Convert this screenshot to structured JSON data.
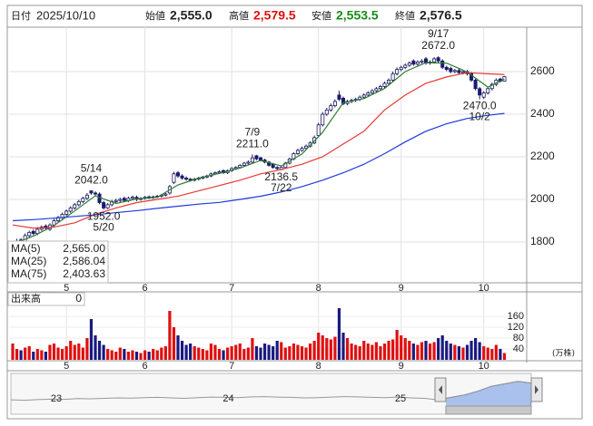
{
  "header": {
    "date_label": "日付",
    "date": "2025/10/10",
    "open_label": "始値",
    "open": "2,555.0",
    "high_label": "高値",
    "high": "2,579.5",
    "low_label": "安値",
    "low": "2,553.5",
    "close_label": "終値",
    "close": "2,576.5"
  },
  "chart_data": {
    "type": "candlestick",
    "open": [
      1780,
      1790,
      1810,
      1800,
      1830,
      1850,
      1840,
      1860,
      1875,
      1860,
      1880,
      1900,
      1915,
      1930,
      1945,
      1960,
      1975,
      1990,
      2005,
      2040,
      2030,
      2025,
      1985,
      1960,
      1975,
      1990,
      1995,
      2005,
      1995,
      2005,
      2010,
      2000,
      2005,
      2012,
      2008,
      2012,
      2015,
      2020,
      2030,
      2080,
      2125,
      2110,
      2100,
      2095,
      2090,
      2095,
      2100,
      2105,
      2110,
      2120,
      2125,
      2135,
      2125,
      2135,
      2145,
      2150,
      2160,
      2170,
      2175,
      2205,
      2195,
      2185,
      2175,
      2165,
      2150,
      2140,
      2150,
      2170,
      2190,
      2215,
      2230,
      2240,
      2250,
      2265,
      2300,
      2350,
      2400,
      2420,
      2440,
      2490,
      2475,
      2450,
      2460,
      2465,
      2470,
      2480,
      2490,
      2500,
      2510,
      2520,
      2530,
      2545,
      2560,
      2590,
      2610,
      2620,
      2630,
      2650,
      2635,
      2645,
      2660,
      2640,
      2645,
      2665,
      2650,
      2620,
      2615,
      2600,
      2605,
      2595,
      2600,
      2590,
      2560,
      2520,
      2480,
      2500,
      2520,
      2540,
      2565,
      2555
    ],
    "high": [
      1798,
      1815,
      1818,
      1840,
      1853,
      1858,
      1870,
      1878,
      1883,
      1888,
      1908,
      1923,
      1938,
      1953,
      1968,
      1983,
      1998,
      2013,
      2030,
      2042,
      2038,
      2033,
      1993,
      1983,
      1998,
      2003,
      2008,
      2013,
      2013,
      2018,
      2018,
      2011,
      2016,
      2018,
      2018,
      2021,
      2026,
      2031,
      2068,
      2130,
      2133,
      2118,
      2108,
      2101,
      2101,
      2106,
      2111,
      2116,
      2126,
      2131,
      2136,
      2141,
      2141,
      2151,
      2156,
      2166,
      2176,
      2183,
      2211,
      2209,
      2201,
      2191,
      2181,
      2171,
      2156,
      2156,
      2176,
      2196,
      2221,
      2238,
      2248,
      2258,
      2273,
      2300,
      2360,
      2410,
      2430,
      2450,
      2470,
      2510,
      2483,
      2468,
      2473,
      2478,
      2488,
      2498,
      2508,
      2518,
      2528,
      2538,
      2553,
      2568,
      2600,
      2620,
      2628,
      2638,
      2648,
      2658,
      2653,
      2658,
      2668,
      2653,
      2668,
      2672,
      2658,
      2628,
      2623,
      2613,
      2613,
      2608,
      2608,
      2598,
      2568,
      2528,
      2508,
      2528,
      2548,
      2568,
      2571,
      2579.5
    ],
    "low": [
      1772,
      1782,
      1792,
      1792,
      1822,
      1832,
      1832,
      1852,
      1857,
      1852,
      1872,
      1892,
      1907,
      1922,
      1937,
      1952,
      1967,
      1982,
      1997,
      2022,
      2017,
      1977,
      1952,
      1955,
      1967,
      1982,
      1987,
      1987,
      1987,
      1997,
      1992,
      1994,
      1999,
      2002,
      2002,
      2006,
      2009,
      2014,
      2022,
      2072,
      2102,
      2092,
      2087,
      2084,
      2084,
      2089,
      2094,
      2099,
      2104,
      2114,
      2119,
      2119,
      2119,
      2129,
      2139,
      2144,
      2154,
      2164,
      2169,
      2184,
      2179,
      2169,
      2154,
      2144,
      2139,
      2136.5,
      2144,
      2164,
      2184,
      2209,
      2224,
      2234,
      2244,
      2259,
      2292,
      2342,
      2392,
      2412,
      2432,
      2462,
      2442,
      2442,
      2452,
      2457,
      2462,
      2472,
      2482,
      2492,
      2502,
      2512,
      2522,
      2537,
      2552,
      2582,
      2602,
      2612,
      2622,
      2627,
      2627,
      2637,
      2632,
      2632,
      2637,
      2642,
      2612,
      2602,
      2592,
      2592,
      2587,
      2587,
      2582,
      2552,
      2512,
      2470,
      2472,
      2492,
      2512,
      2532,
      2549,
      2553.5
    ],
    "close": [
      1790,
      1805,
      1800,
      1830,
      1845,
      1840,
      1860,
      1870,
      1865,
      1880,
      1900,
      1915,
      1930,
      1945,
      1960,
      1975,
      1990,
      2005,
      2020,
      2030,
      2025,
      1985,
      1960,
      1975,
      1990,
      1995,
      2000,
      1995,
      2005,
      2010,
      2000,
      2005,
      2010,
      2008,
      2012,
      2015,
      2020,
      2025,
      2060,
      2120,
      2110,
      2100,
      2095,
      2090,
      2095,
      2100,
      2105,
      2110,
      2120,
      2125,
      2130,
      2125,
      2135,
      2145,
      2150,
      2160,
      2170,
      2175,
      2195,
      2190,
      2185,
      2175,
      2160,
      2150,
      2145,
      2150,
      2170,
      2190,
      2215,
      2230,
      2240,
      2250,
      2265,
      2290,
      2350,
      2400,
      2420,
      2440,
      2460,
      2470,
      2450,
      2460,
      2465,
      2470,
      2480,
      2490,
      2500,
      2510,
      2520,
      2530,
      2545,
      2560,
      2590,
      2610,
      2620,
      2630,
      2640,
      2635,
      2645,
      2650,
      2640,
      2645,
      2660,
      2650,
      2620,
      2610,
      2600,
      2605,
      2595,
      2600,
      2590,
      2560,
      2520,
      2490,
      2500,
      2520,
      2540,
      2560,
      2555,
      2576.5
    ],
    "up_color": "#ffffff",
    "down_color": "#1a1a80",
    "wick_color": "#1a1a60",
    "xticks": [
      {
        "value": 13,
        "label": "5"
      },
      {
        "value": 32,
        "label": "6"
      },
      {
        "value": 53,
        "label": "7"
      },
      {
        "value": 74,
        "label": "8"
      },
      {
        "value": 94,
        "label": "9"
      },
      {
        "value": 114,
        "label": "10"
      }
    ],
    "ylim": [
      1608.5,
      2808.5
    ],
    "yticks": [
      1800,
      2000,
      2200,
      2400,
      2600
    ],
    "grid": true,
    "series": [
      {
        "name": "MA(5)",
        "last_label": "2,565.00",
        "color": "#2e7d32",
        "x": [
          0,
          5,
          10,
          15,
          20,
          25,
          30,
          35,
          40,
          45,
          50,
          55,
          60,
          65,
          70,
          75,
          80,
          85,
          90,
          95,
          100,
          105,
          110,
          115,
          119
        ],
        "values": [
          1790,
          1828,
          1877,
          1946,
          2017,
          1981,
          2002,
          2010,
          2068,
          2100,
          2122,
          2147,
          2183,
          2157,
          2213,
          2315,
          2454,
          2473,
          2521,
          2600,
          2642,
          2640,
          2598,
          2527,
          2565.0
        ]
      },
      {
        "name": "MA(25)",
        "last_label": "2,586.04",
        "color": "#e53935",
        "x": [
          0,
          5,
          10,
          15,
          20,
          25,
          30,
          35,
          40,
          45,
          50,
          55,
          60,
          65,
          70,
          75,
          80,
          85,
          90,
          95,
          100,
          105,
          110,
          115,
          119
        ],
        "values": [
          1880,
          1865,
          1870,
          1890,
          1930,
          1960,
          1985,
          2000,
          2015,
          2040,
          2065,
          2090,
          2120,
          2140,
          2165,
          2200,
          2260,
          2320,
          2420,
          2490,
          2545,
          2575,
          2595,
          2590,
          2586.04
        ]
      },
      {
        "name": "MA(75)",
        "last_label": "2,403.63",
        "color": "#1e3adb",
        "x": [
          0,
          5,
          10,
          15,
          20,
          25,
          30,
          35,
          40,
          45,
          50,
          55,
          60,
          65,
          70,
          75,
          80,
          85,
          90,
          95,
          100,
          105,
          110,
          115,
          119
        ],
        "values": [
          1900,
          1905,
          1912,
          1920,
          1928,
          1938,
          1947,
          1958,
          1968,
          1978,
          1986,
          2000,
          2015,
          2035,
          2060,
          2090,
          2125,
          2165,
          2215,
          2270,
          2320,
          2355,
          2380,
          2395,
          2403.63
        ]
      }
    ],
    "annotations": [
      {
        "date": "5/14",
        "label": "2042.0",
        "value": 2042,
        "x": 19
      },
      {
        "date": "5/20",
        "label": "1952.0",
        "value": 1952,
        "x": 22
      },
      {
        "date": "7/9",
        "label": "2211.0",
        "value": 2211,
        "x": 58
      },
      {
        "date": "7/22",
        "label": "2136.5",
        "value": 2136.5,
        "x": 65
      },
      {
        "date": "9/17",
        "label": "2672.0",
        "value": 2672,
        "x": 103
      },
      {
        "date": "10/2",
        "label": "2470.0",
        "value": 2470,
        "x": 113
      }
    ],
    "volume": {
      "title": "出来高",
      "current": 0,
      "unit": "(万株)",
      "up_color": "#e01010",
      "down_color": "#1a1a80",
      "ylim": [
        0,
        250
      ],
      "yticks": [
        40,
        80,
        120,
        160
      ],
      "values": [
        60,
        40,
        35,
        45,
        50,
        30,
        40,
        35,
        30,
        55,
        60,
        45,
        40,
        50,
        70,
        55,
        60,
        45,
        80,
        150,
        90,
        70,
        55,
        40,
        35,
        30,
        45,
        40,
        30,
        35,
        30,
        25,
        35,
        30,
        40,
        35,
        45,
        50,
        180,
        120,
        90,
        70,
        55,
        60,
        50,
        45,
        40,
        35,
        60,
        55,
        40,
        35,
        45,
        50,
        55,
        60,
        40,
        45,
        80,
        50,
        45,
        60,
        55,
        50,
        70,
        65,
        45,
        50,
        60,
        55,
        50,
        45,
        60,
        70,
        100,
        90,
        80,
        75,
        85,
        190,
        100,
        80,
        60,
        55,
        50,
        70,
        60,
        55,
        65,
        50,
        60,
        70,
        75,
        110,
        90,
        80,
        70,
        60,
        55,
        65,
        70,
        60,
        65,
        80,
        90,
        70,
        60,
        55,
        50,
        45,
        55,
        70,
        80,
        65,
        50,
        45,
        40,
        55,
        40,
        25
      ]
    },
    "navigator": {
      "color": "#999999",
      "fill": "#a9c1ec",
      "ylim": [
        1500,
        2900
      ],
      "values": [
        1900,
        1880,
        1910,
        1930,
        1920,
        1950,
        1940,
        1960,
        1980,
        1970,
        1990,
        2000,
        1980,
        1960,
        1990,
        2010,
        2000,
        1990,
        2020,
        2030,
        2010,
        2000,
        1980,
        1990,
        2010,
        2030,
        2020,
        2000,
        1990,
        2010,
        1980,
        1960,
        1900,
        2000,
        2100,
        2250,
        2450,
        2550,
        2650,
        2580
      ],
      "xticks": [
        {
          "value": 3.4,
          "label": "23"
        },
        {
          "value": 16.3,
          "label": "24"
        },
        {
          "value": 29.2,
          "label": "25"
        }
      ],
      "range": [
        32.6,
        39
      ]
    }
  }
}
